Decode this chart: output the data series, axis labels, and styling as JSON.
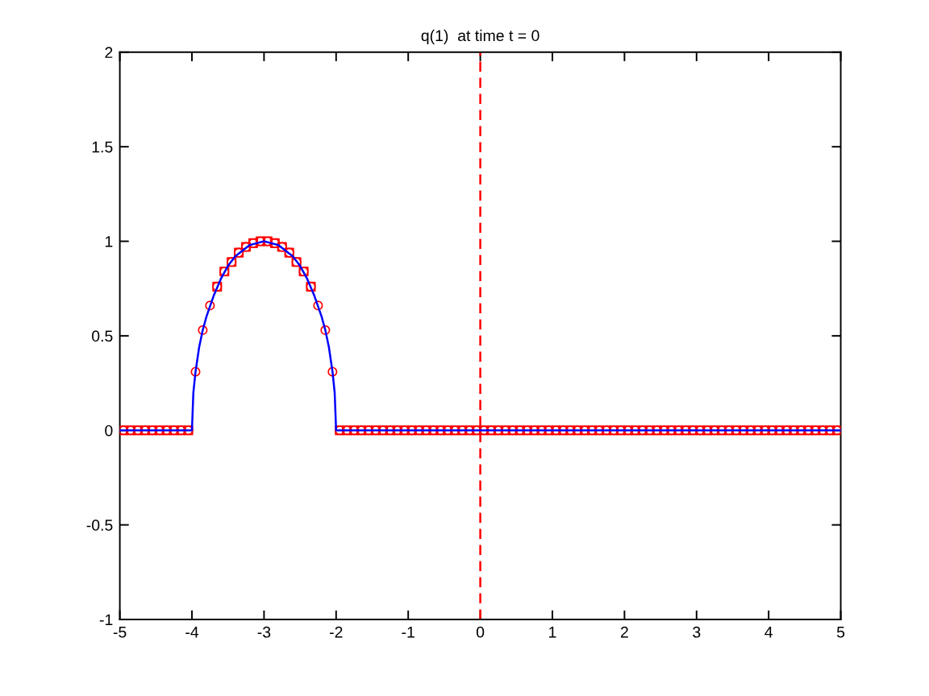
{
  "chart_data": {
    "type": "line",
    "title": "q(1)  at time t = 0",
    "xlim": [
      -5,
      5
    ],
    "ylim": [
      -1,
      2
    ],
    "xticks": [
      -5,
      -4,
      -3,
      -2,
      -1,
      0,
      1,
      2,
      3,
      4,
      5
    ],
    "yticks": [
      -1,
      -0.5,
      0,
      0.5,
      1,
      1.5,
      2
    ],
    "ref_lines": [
      {
        "axis": "x",
        "value": 0,
        "color": "#ff0000",
        "line_style": "dashed"
      }
    ],
    "series": [
      {
        "type": "scatter",
        "marker": "circle",
        "color": "#ff0000",
        "x": [
          -4.95,
          -4.85,
          -4.75,
          -4.65,
          -4.55,
          -4.45,
          -4.35,
          -4.25,
          -4.15,
          -4.05,
          -3.95,
          -3.85,
          -3.75,
          -3.65,
          -3.55,
          -3.45,
          -3.35,
          -3.25,
          -3.15,
          -3.05,
          -2.95,
          -2.85,
          -2.75,
          -2.65,
          -2.55,
          -2.45,
          -2.35,
          -2.25,
          -2.15,
          -2.05,
          -1.95,
          -1.85,
          -1.75,
          -1.65,
          -1.55,
          -1.45,
          -1.35,
          -1.25,
          -1.15,
          -1.05,
          -0.95,
          -0.85,
          -0.75,
          -0.65,
          -0.55,
          -0.45,
          -0.35,
          -0.25,
          -0.15,
          -0.05,
          0.05,
          0.15,
          0.25,
          0.35,
          0.45,
          0.55,
          0.65,
          0.75,
          0.85,
          0.95,
          1.05,
          1.15,
          1.25,
          1.35,
          1.45,
          1.55,
          1.65,
          1.75,
          1.85,
          1.95,
          2.05,
          2.15,
          2.25,
          2.35,
          2.45,
          2.55,
          2.65,
          2.75,
          2.85,
          2.95,
          3.05,
          3.15,
          3.25,
          3.35,
          3.45,
          3.55,
          3.65,
          3.75,
          3.85,
          3.95,
          4.05,
          4.15,
          4.25,
          4.35,
          4.45,
          4.55,
          4.65,
          4.75,
          4.85,
          4.95
        ],
        "values": [
          0,
          0,
          0,
          0,
          0,
          0,
          0,
          0,
          0,
          0,
          0.31,
          0.53,
          0.66,
          0.76,
          0.84,
          0.89,
          0.94,
          0.97,
          0.99,
          1.0,
          1.0,
          0.99,
          0.97,
          0.94,
          0.89,
          0.84,
          0.76,
          0.66,
          0.53,
          0.31,
          0,
          0,
          0,
          0,
          0,
          0,
          0,
          0,
          0,
          0,
          0,
          0,
          0,
          0,
          0,
          0,
          0,
          0,
          0,
          0,
          0,
          0,
          0,
          0,
          0,
          0,
          0,
          0,
          0,
          0,
          0,
          0,
          0,
          0,
          0,
          0,
          0,
          0,
          0,
          0,
          0,
          0,
          0,
          0,
          0,
          0,
          0,
          0,
          0,
          0,
          0,
          0,
          0,
          0,
          0,
          0,
          0,
          0,
          0,
          0,
          0,
          0,
          0,
          0,
          0,
          0,
          0,
          0,
          0,
          0
        ]
      },
      {
        "type": "scatter",
        "marker": "square",
        "color": "#ff0000",
        "x": [
          -4.95,
          -4.85,
          -4.75,
          -4.65,
          -4.55,
          -4.45,
          -4.35,
          -4.25,
          -4.15,
          -4.05,
          -3.65,
          -3.55,
          -3.45,
          -3.35,
          -3.25,
          -3.15,
          -3.05,
          -2.95,
          -2.85,
          -2.75,
          -2.65,
          -2.55,
          -2.45,
          -2.35,
          -1.95,
          -1.85,
          -1.75,
          -1.65,
          -1.55,
          -1.45,
          -1.35,
          -1.25,
          -1.15,
          -1.05,
          -0.95,
          -0.85,
          -0.75,
          -0.65,
          -0.55,
          -0.45,
          -0.35,
          -0.25,
          -0.15,
          -0.05,
          0.05,
          0.15,
          0.25,
          0.35,
          0.45,
          0.55,
          0.65,
          0.75,
          0.85,
          0.95,
          1.05,
          1.15,
          1.25,
          1.35,
          1.45,
          1.55,
          1.65,
          1.75,
          1.85,
          1.95,
          2.05,
          2.15,
          2.25,
          2.35,
          2.45,
          2.55,
          2.65,
          2.75,
          2.85,
          2.95,
          3.05,
          3.15,
          3.25,
          3.35,
          3.45,
          3.55,
          3.65,
          3.75,
          3.85,
          3.95,
          4.05,
          4.15,
          4.25,
          4.35,
          4.45,
          4.55,
          4.65,
          4.75,
          4.85,
          4.95
        ],
        "values": [
          0,
          0,
          0,
          0,
          0,
          0,
          0,
          0,
          0,
          0,
          0.76,
          0.84,
          0.89,
          0.94,
          0.97,
          0.99,
          1.0,
          1.0,
          0.99,
          0.97,
          0.94,
          0.89,
          0.84,
          0.76,
          0,
          0,
          0,
          0,
          0,
          0,
          0,
          0,
          0,
          0,
          0,
          0,
          0,
          0,
          0,
          0,
          0,
          0,
          0,
          0,
          0,
          0,
          0,
          0,
          0,
          0,
          0,
          0,
          0,
          0,
          0,
          0,
          0,
          0,
          0,
          0,
          0,
          0,
          0,
          0,
          0,
          0,
          0,
          0,
          0,
          0,
          0,
          0,
          0,
          0,
          0,
          0,
          0,
          0,
          0,
          0,
          0,
          0,
          0,
          0,
          0,
          0,
          0,
          0,
          0,
          0,
          0,
          0,
          0,
          0
        ]
      },
      {
        "marker": "none",
        "line_style": "solid",
        "color": "#0000ff",
        "x": [
          -5,
          -4,
          -3.98,
          -3.95,
          -3.9,
          -3.85,
          -3.8,
          -3.7,
          -3.6,
          -3.5,
          -3.4,
          -3.3,
          -3.2,
          -3.1,
          -3,
          -2.9,
          -2.8,
          -2.7,
          -2.6,
          -2.5,
          -2.4,
          -2.3,
          -2.2,
          -2.15,
          -2.1,
          -2.05,
          -2.02,
          -2,
          5
        ],
        "values": [
          0,
          0,
          0.2,
          0.31,
          0.44,
          0.53,
          0.6,
          0.71,
          0.8,
          0.87,
          0.92,
          0.95,
          0.98,
          0.99,
          1,
          0.99,
          0.98,
          0.95,
          0.92,
          0.87,
          0.8,
          0.71,
          0.6,
          0.53,
          0.44,
          0.31,
          0.2,
          0,
          0
        ]
      }
    ]
  }
}
